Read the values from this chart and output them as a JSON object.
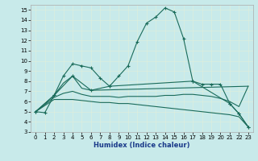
{
  "xlabel": "Humidex (Indice chaleur)",
  "xlim": [
    -0.5,
    23.5
  ],
  "ylim": [
    3,
    15.5
  ],
  "yticks": [
    3,
    4,
    5,
    6,
    7,
    8,
    9,
    10,
    11,
    12,
    13,
    14,
    15
  ],
  "xticks": [
    0,
    1,
    2,
    3,
    4,
    5,
    6,
    7,
    8,
    9,
    10,
    11,
    12,
    13,
    14,
    15,
    16,
    17,
    18,
    19,
    20,
    21,
    22,
    23
  ],
  "background_color": "#c8eaea",
  "plot_bg_color": "#c8eaea",
  "line_color": "#1a6b5a",
  "grid_color": "#e8f8f8",
  "lines": [
    {
      "x": [
        0,
        1,
        2,
        3,
        4,
        5,
        6,
        7,
        8,
        9,
        10,
        11,
        12,
        13,
        14,
        15,
        16,
        17,
        18,
        19,
        20,
        21,
        22,
        23
      ],
      "y": [
        5.0,
        4.9,
        6.6,
        8.5,
        9.7,
        9.5,
        9.3,
        8.3,
        7.5,
        8.5,
        9.5,
        11.9,
        13.7,
        14.3,
        15.2,
        14.8,
        12.2,
        8.0,
        7.7,
        7.7,
        7.7,
        5.8,
        4.8,
        3.5
      ],
      "has_marker": true
    },
    {
      "x": [
        0,
        2,
        3,
        4,
        5,
        6,
        23
      ],
      "y": [
        5.0,
        6.6,
        7.8,
        8.5,
        7.3,
        7.1,
        7.5
      ],
      "has_marker": false
    },
    {
      "x": [
        0,
        2,
        3,
        4,
        5,
        6,
        7,
        8,
        9,
        10,
        11,
        12,
        13,
        14,
        15,
        16,
        17,
        18,
        19,
        20,
        21,
        22,
        23
      ],
      "y": [
        5.0,
        6.4,
        6.8,
        7.0,
        6.7,
        6.5,
        6.5,
        6.5,
        6.4,
        6.5,
        6.5,
        6.5,
        6.5,
        6.6,
        6.6,
        6.7,
        6.7,
        6.6,
        6.5,
        6.3,
        6.0,
        5.5,
        7.5
      ],
      "has_marker": false
    },
    {
      "x": [
        0,
        2,
        3,
        4,
        5,
        6,
        7,
        8,
        9,
        10,
        11,
        12,
        13,
        14,
        15,
        16,
        17,
        18,
        19,
        20,
        21,
        22,
        23
      ],
      "y": [
        5.0,
        6.2,
        6.2,
        6.2,
        6.1,
        6.0,
        5.9,
        5.9,
        5.8,
        5.8,
        5.7,
        5.6,
        5.5,
        5.4,
        5.3,
        5.2,
        5.1,
        5.0,
        4.9,
        4.8,
        4.7,
        4.5,
        3.5
      ],
      "has_marker": false
    },
    {
      "x": [
        0,
        2,
        4,
        6,
        8,
        17,
        21,
        22,
        23
      ],
      "y": [
        5.0,
        6.6,
        8.5,
        7.1,
        7.5,
        8.0,
        5.8,
        4.8,
        3.5
      ],
      "has_marker": true
    }
  ]
}
